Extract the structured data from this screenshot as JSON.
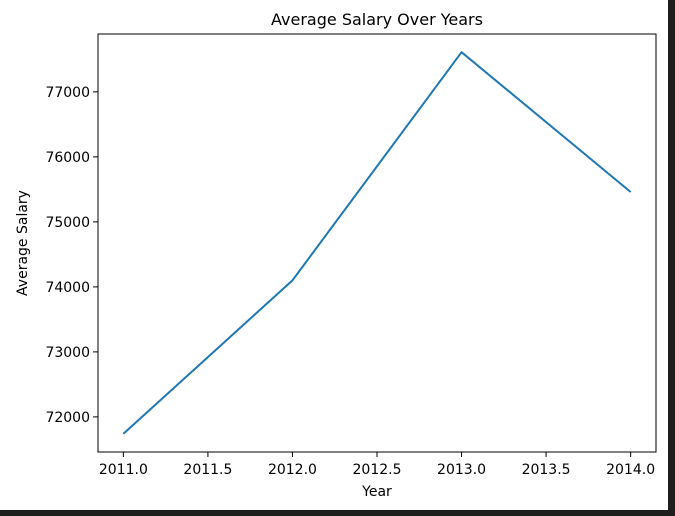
{
  "chart_data": {
    "type": "line",
    "title": "Average Salary Over Years",
    "xlabel": "Year",
    "ylabel": "Average Salary",
    "x": [
      2011.0,
      2012.0,
      2013.0,
      2014.0
    ],
    "series": [
      {
        "values": [
          71740,
          74100,
          77610,
          75460
        ],
        "color": "#1f77b4"
      }
    ],
    "xlim": [
      2010.85,
      2014.15
    ],
    "ylim": [
      71460,
      77890
    ],
    "xticks": [
      2011.0,
      2011.5,
      2012.0,
      2012.5,
      2013.0,
      2013.5,
      2014.0
    ],
    "xtick_labels": [
      "2011.0",
      "2011.5",
      "2012.0",
      "2012.5",
      "2013.0",
      "2013.5",
      "2014.0"
    ],
    "yticks": [
      72000,
      73000,
      74000,
      75000,
      76000,
      77000
    ],
    "ytick_labels": [
      "72000",
      "73000",
      "74000",
      "75000",
      "76000",
      "77000"
    ],
    "grid": false,
    "legend": "none"
  }
}
